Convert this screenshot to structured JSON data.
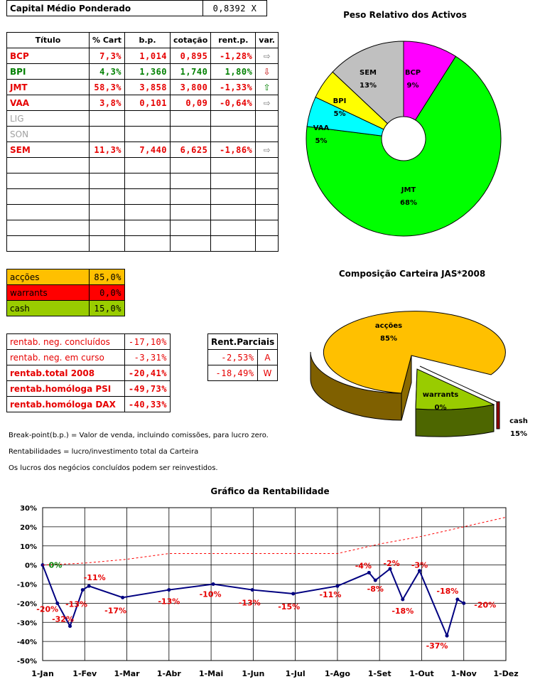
{
  "capital": {
    "label": "Capital Médio Ponderado",
    "value": "0,8392 X"
  },
  "titles_table": {
    "headers": [
      "Título",
      "% Cart",
      "b.p.",
      "cotação",
      "rent.p.",
      "var."
    ],
    "rows": [
      {
        "name": "BCP",
        "pct": "7,3%",
        "bp": "1,014",
        "cot": "0,895",
        "rent": "-1,28%",
        "var": "right",
        "color": "#e60000"
      },
      {
        "name": "BPI",
        "pct": "4,3%",
        "bp": "1,360",
        "cot": "1,740",
        "rent": "1,80%",
        "var": "down",
        "color": "#008000"
      },
      {
        "name": "JMT",
        "pct": "58,3%",
        "bp": "3,858",
        "cot": "3,800",
        "rent": "-1,33%",
        "var": "up",
        "color": "#e60000"
      },
      {
        "name": "VAA",
        "pct": "3,8%",
        "bp": "0,101",
        "cot": "0,09",
        "rent": "-0,64%",
        "var": "right",
        "color": "#e60000"
      },
      {
        "name": "LIG",
        "pct": "",
        "bp": "",
        "cot": "",
        "rent": "",
        "var": "",
        "color": "#a0a0a0"
      },
      {
        "name": "SON",
        "pct": "",
        "bp": "",
        "cot": "",
        "rent": "",
        "var": "",
        "color": "#a0a0a0"
      },
      {
        "name": "SEM",
        "pct": "11,3%",
        "bp": "7,440",
        "cot": "6,625",
        "rent": "-1,86%",
        "var": "right",
        "color": "#e60000"
      },
      {
        "name": "",
        "pct": "",
        "bp": "",
        "cot": "",
        "rent": "",
        "var": "",
        "color": "#000"
      },
      {
        "name": "",
        "pct": "",
        "bp": "",
        "cot": "",
        "rent": "",
        "var": "",
        "color": "#000"
      },
      {
        "name": "",
        "pct": "",
        "bp": "",
        "cot": "",
        "rent": "",
        "var": "",
        "color": "#000"
      },
      {
        "name": "",
        "pct": "",
        "bp": "",
        "cot": "",
        "rent": "",
        "var": "",
        "color": "#000"
      },
      {
        "name": "",
        "pct": "",
        "bp": "",
        "cot": "",
        "rent": "",
        "var": "",
        "color": "#000"
      },
      {
        "name": "",
        "pct": "",
        "bp": "",
        "cot": "",
        "rent": "",
        "var": "",
        "color": "#000"
      }
    ]
  },
  "alloc": [
    {
      "label": "acções",
      "value": "85,0%",
      "bg": "#ffc000",
      "fg": "#000000"
    },
    {
      "label": "warrants",
      "value": "0,0%",
      "bg": "#ff0000",
      "fg": "#000000"
    },
    {
      "label": "cash",
      "value": "15,0%",
      "bg": "#99cc00",
      "fg": "#000000"
    }
  ],
  "rentab": [
    {
      "label": "rentab. neg. concluídos",
      "value": "-17,10%",
      "bold": false
    },
    {
      "label": "rentab. neg. em curso",
      "value": "-3,31%",
      "bold": false
    },
    {
      "label": "rentab.total 2008",
      "value": "-20,41%",
      "bold": true
    },
    {
      "label": "rentab.homóloga PSI",
      "value": "-49,73%",
      "bold": true
    },
    {
      "label": "rentab.homóloga DAX",
      "value": "-40,33%",
      "bold": true
    }
  ],
  "parciais": {
    "header": "Rent.Parciais",
    "rows": [
      {
        "value": "-2,53%",
        "tag": "A"
      },
      {
        "value": "-18,49%",
        "tag": "W"
      }
    ]
  },
  "notes": [
    "Break-point(b.p.) = Valor de venda, incluindo comissões, para lucro zero.",
    "Rentabilidades = lucro/investimento total da Carteira",
    "Os lucros dos negócios concluídos podem ser reinvestidos."
  ],
  "chart_data": [
    {
      "type": "pie",
      "title": "Peso Relativo dos Activos",
      "slices": [
        {
          "label": "BCP",
          "pct_label": "9%",
          "value": 9,
          "color": "#ff00ff"
        },
        {
          "label": "JMT",
          "pct_label": "68%",
          "value": 68,
          "color": "#00ff00"
        },
        {
          "label": "VAA",
          "pct_label": "5%",
          "value": 5,
          "color": "#00ffff"
        },
        {
          "label": "BPI",
          "pct_label": "5%",
          "value": 5,
          "color": "#ffff00"
        },
        {
          "label": "SEM",
          "pct_label": "13%",
          "value": 13,
          "color": "#c0c0c0"
        }
      ]
    },
    {
      "type": "pie",
      "title": "Composição Carteira JAS*2008",
      "slices": [
        {
          "label": "acções",
          "pct_label": "85%",
          "value": 85,
          "color": "#ffc000"
        },
        {
          "label": "warrants",
          "pct_label": "0%",
          "value": 0.5,
          "color": "#990000"
        },
        {
          "label": "cash",
          "pct_label": "15%",
          "value": 15,
          "color": "#99cc00"
        }
      ]
    },
    {
      "type": "line",
      "title": "Gráfico da Rentabilidade",
      "x_ticks": [
        "1-Jan",
        "1-Fev",
        "1-Mar",
        "1-Abr",
        "1-Mai",
        "1-Jun",
        "1-Jul",
        "1-Ago",
        "1-Set",
        "1-Out",
        "1-Nov",
        "1-Dez"
      ],
      "y_ticks": [
        "30%",
        "20%",
        "10%",
        "0%",
        "-10%",
        "-20%",
        "-30%",
        "-40%",
        "-50%"
      ],
      "ylim": [
        -50,
        30
      ],
      "grid": true,
      "series": [
        {
          "style": "solid",
          "color": "#000080",
          "points": [
            [
              0,
              0
            ],
            [
              0.35,
              -20
            ],
            [
              0.65,
              -32
            ],
            [
              0.95,
              -13
            ],
            [
              1.1,
              -11
            ],
            [
              1.9,
              -17
            ],
            [
              3.0,
              -13
            ],
            [
              4.05,
              -10
            ],
            [
              4.98,
              -13
            ],
            [
              5.95,
              -15
            ],
            [
              7.0,
              -11
            ],
            [
              7.75,
              -4
            ],
            [
              7.9,
              -8
            ],
            [
              8.25,
              -2
            ],
            [
              8.55,
              -18
            ],
            [
              8.95,
              -3
            ],
            [
              9.6,
              -37
            ],
            [
              9.85,
              -18
            ],
            [
              10.0,
              -20
            ]
          ]
        },
        {
          "style": "dashed",
          "color": "#ff0000",
          "points": [
            [
              0,
              0
            ],
            [
              1,
              1
            ],
            [
              2,
              3
            ],
            [
              3,
              6
            ],
            [
              4,
              6
            ],
            [
              5,
              6
            ],
            [
              6,
              6
            ],
            [
              7,
              6
            ],
            [
              8,
              11
            ],
            [
              9,
              15
            ],
            [
              10,
              20
            ],
            [
              11,
              25
            ]
          ]
        }
      ],
      "labels": [
        {
          "text": "0%",
          "x": 0,
          "y": 0,
          "color": "#008000"
        },
        {
          "text": "-20%",
          "x": 0.35,
          "y": -20,
          "color": "#e60000"
        },
        {
          "text": "-13%",
          "x": 0.6,
          "y": -13,
          "color": "#e60000"
        },
        {
          "text": "-32%",
          "x": 0.65,
          "y": -32,
          "color": "#e60000"
        },
        {
          "text": "-11%",
          "x": 1.1,
          "y": -11,
          "color": "#e60000"
        },
        {
          "text": "-17%",
          "x": 1.9,
          "y": -17,
          "color": "#e60000"
        },
        {
          "text": "-13%",
          "x": 3.0,
          "y": -13,
          "color": "#e60000"
        },
        {
          "text": "-10%",
          "x": 4.05,
          "y": -10,
          "color": "#e60000"
        },
        {
          "text": "-13%",
          "x": 4.98,
          "y": -13,
          "color": "#e60000"
        },
        {
          "text": "-15%",
          "x": 5.95,
          "y": -15,
          "color": "#e60000"
        },
        {
          "text": "-11%",
          "x": 7.0,
          "y": -11,
          "color": "#e60000"
        },
        {
          "text": "-4%",
          "x": 7.75,
          "y": -4,
          "color": "#e60000"
        },
        {
          "text": "-8%",
          "x": 7.9,
          "y": -8,
          "color": "#e60000"
        },
        {
          "text": "-2%",
          "x": 8.25,
          "y": -2,
          "color": "#e60000"
        },
        {
          "text": "-18%",
          "x": 8.55,
          "y": -18,
          "color": "#e60000"
        },
        {
          "text": "-3%",
          "x": 8.95,
          "y": -3,
          "color": "#e60000"
        },
        {
          "text": "-37%",
          "x": 9.6,
          "y": -37,
          "color": "#e60000"
        },
        {
          "text": "-18%",
          "x": 9.85,
          "y": -18,
          "color": "#e60000"
        },
        {
          "text": "-20%",
          "x": 10.0,
          "y": -20,
          "color": "#e60000"
        }
      ]
    }
  ]
}
